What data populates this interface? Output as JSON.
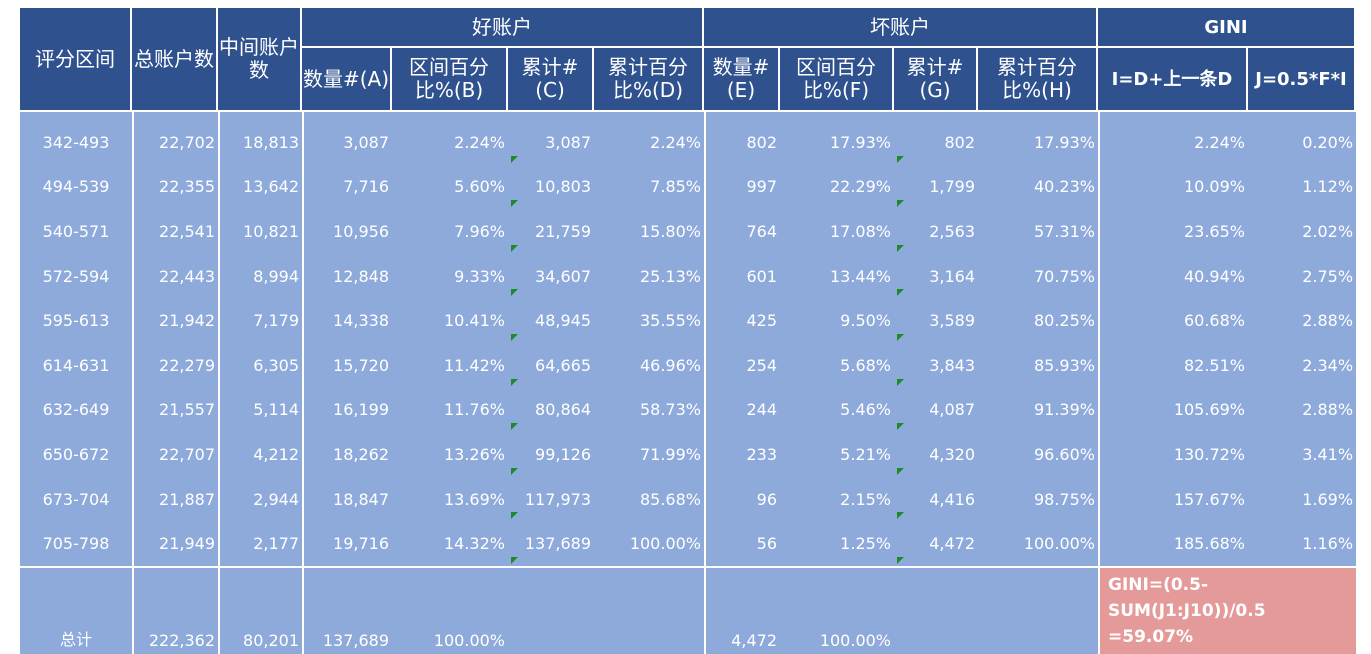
{
  "header": {
    "score_range": "评分区间",
    "total_accounts": "总账户数",
    "middle_accounts": "中间账户数",
    "good_accounts": "好账户",
    "bad_accounts": "坏账户",
    "gini": "GINI",
    "good_cols": [
      "数量#(A)",
      "区间百分比%(B)",
      "累计#(C)",
      "累计百分比%(D)"
    ],
    "bad_cols": [
      "数量#(E)",
      "区间百分比%(F)",
      "累计#(G)",
      "累计百分比%(H)"
    ],
    "gini_cols": [
      "I=D+上一条D",
      "J=0.5*F*I"
    ]
  },
  "rows": [
    [
      "342-493",
      "22,702",
      "18,813",
      "3,087",
      "2.24%",
      "3,087",
      "2.24%",
      "802",
      "17.93%",
      "802",
      "17.93%",
      "2.24%",
      "0.20%"
    ],
    [
      "494-539",
      "22,355",
      "13,642",
      "7,716",
      "5.60%",
      "10,803",
      "7.85%",
      "997",
      "22.29%",
      "1,799",
      "40.23%",
      "10.09%",
      "1.12%"
    ],
    [
      "540-571",
      "22,541",
      "10,821",
      "10,956",
      "7.96%",
      "21,759",
      "15.80%",
      "764",
      "17.08%",
      "2,563",
      "57.31%",
      "23.65%",
      "2.02%"
    ],
    [
      "572-594",
      "22,443",
      "8,994",
      "12,848",
      "9.33%",
      "34,607",
      "25.13%",
      "601",
      "13.44%",
      "3,164",
      "70.75%",
      "40.94%",
      "2.75%"
    ],
    [
      "595-613",
      "21,942",
      "7,179",
      "14,338",
      "10.41%",
      "48,945",
      "35.55%",
      "425",
      "9.50%",
      "3,589",
      "80.25%",
      "60.68%",
      "2.88%"
    ],
    [
      "614-631",
      "22,279",
      "6,305",
      "15,720",
      "11.42%",
      "64,665",
      "46.96%",
      "254",
      "5.68%",
      "3,843",
      "85.93%",
      "82.51%",
      "2.34%"
    ],
    [
      "632-649",
      "21,557",
      "5,114",
      "16,199",
      "11.76%",
      "80,864",
      "58.73%",
      "244",
      "5.46%",
      "4,087",
      "91.39%",
      "105.69%",
      "2.88%"
    ],
    [
      "650-672",
      "22,707",
      "4,212",
      "18,262",
      "13.26%",
      "99,126",
      "71.99%",
      "233",
      "5.21%",
      "4,320",
      "96.60%",
      "130.72%",
      "3.41%"
    ],
    [
      "673-704",
      "21,887",
      "2,944",
      "18,847",
      "13.69%",
      "117,973",
      "85.68%",
      "96",
      "2.15%",
      "4,416",
      "98.75%",
      "157.67%",
      "1.69%"
    ],
    [
      "705-798",
      "21,949",
      "2,177",
      "19,716",
      "14.32%",
      "137,689",
      "100.00%",
      "56",
      "1.25%",
      "4,472",
      "100.00%",
      "185.68%",
      "1.16%"
    ]
  ],
  "total": {
    "label": "总计",
    "total_accounts": "222,362",
    "middle_accounts": "80,201",
    "good_count": "137,689",
    "good_pct": "100.00%",
    "bad_count": "4,472",
    "bad_pct": "100.00%",
    "gini_formula": "GINI=(0.5-SUM(J1:J10))/0.5",
    "gini_value": "=59.07%"
  },
  "colors": {
    "header_bg": "#2f528f",
    "body_bg": "#8eaadb",
    "gini_result_bg": "#e59a9a",
    "flag": "#1f8a2a"
  }
}
